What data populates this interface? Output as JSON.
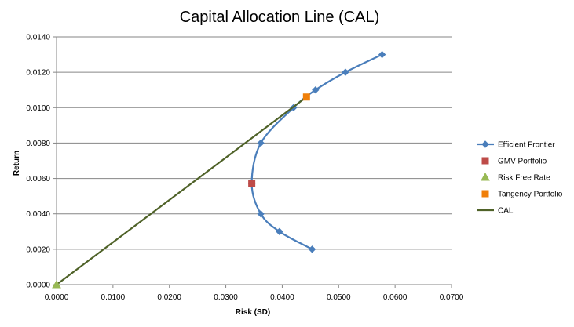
{
  "chart_data": {
    "type": "scatter",
    "title": "Capital Allocation Line (CAL)",
    "xlabel": "Risk (SD)",
    "ylabel": "Return",
    "xlim": [
      0,
      0.07
    ],
    "ylim": [
      0,
      0.014
    ],
    "xticks": [
      "0.0000",
      "0.0100",
      "0.0200",
      "0.0300",
      "0.0400",
      "0.0500",
      "0.0600",
      "0.0700"
    ],
    "yticks": [
      "0.0000",
      "0.0020",
      "0.0040",
      "0.0060",
      "0.0080",
      "0.0100",
      "0.0120",
      "0.0140"
    ],
    "grid": "horizontal",
    "legend_position": "right",
    "series": [
      {
        "name": "Efficient Frontier",
        "kind": "smooth-line-diamond",
        "color": "#4a7ebb",
        "points": [
          [
            0.0453,
            0.002
          ],
          [
            0.0395,
            0.003
          ],
          [
            0.0362,
            0.004
          ],
          [
            0.0346,
            0.0057
          ],
          [
            0.0362,
            0.008
          ],
          [
            0.042,
            0.01
          ],
          [
            0.0459,
            0.011
          ],
          [
            0.0512,
            0.012
          ],
          [
            0.0577,
            0.013
          ]
        ]
      },
      {
        "name": "GMV Portfolio",
        "kind": "square",
        "color": "#be4b48",
        "points": [
          [
            0.0346,
            0.0057
          ]
        ]
      },
      {
        "name": "Risk Free Rate",
        "kind": "triangle",
        "color": "#98b954",
        "points": [
          [
            0.0,
            0.0
          ]
        ]
      },
      {
        "name": "Tangency Portfolio",
        "kind": "square",
        "color": "#f07f09",
        "points": [
          [
            0.0443,
            0.0106
          ]
        ]
      },
      {
        "name": "CAL",
        "kind": "line",
        "color": "#4f6228",
        "points": [
          [
            0.0,
            0.0
          ],
          [
            0.0443,
            0.0106
          ]
        ]
      }
    ]
  }
}
